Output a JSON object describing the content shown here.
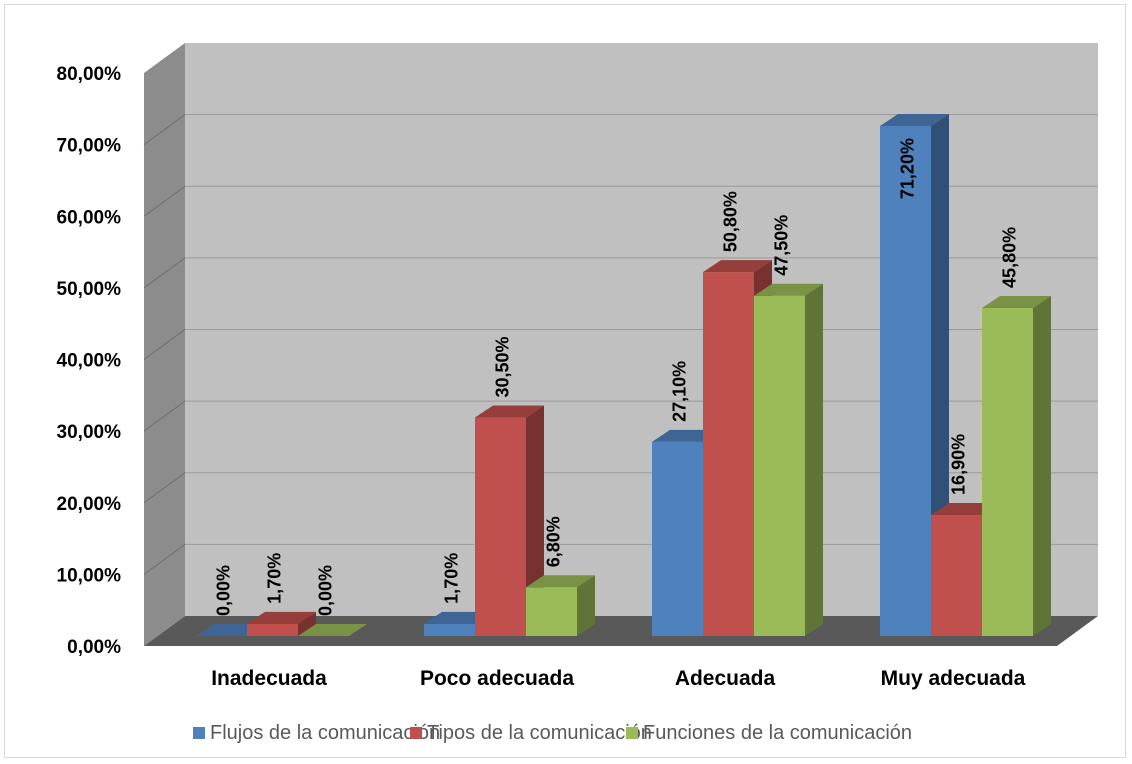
{
  "chart_data": {
    "type": "bar",
    "categories": [
      "Inadecuada",
      "Poco adecuada",
      "Adecuada",
      "Muy adecuada"
    ],
    "series": [
      {
        "name": "Flujos de la comunicación",
        "values": [
          0.0,
          1.7,
          27.1,
          71.2
        ],
        "labels": [
          "0,00%",
          "1,70%",
          "27,10%",
          "71,20%"
        ],
        "color": "#4f81bd"
      },
      {
        "name": "Tipos de la comunicación",
        "values": [
          1.7,
          30.5,
          50.8,
          16.9
        ],
        "labels": [
          "1,70%",
          "30,50%",
          "50,80%",
          "16,90%"
        ],
        "color": "#c0504d"
      },
      {
        "name": "Funciones de la comunicación",
        "values": [
          0.0,
          6.8,
          47.5,
          45.8
        ],
        "labels": [
          "0,00%",
          "6,80%",
          "47,50%",
          "45,80%"
        ],
        "color": "#9bbb59"
      }
    ],
    "yticks": [
      "0,00%",
      "10,00%",
      "20,00%",
      "30,00%",
      "40,00%",
      "50,00%",
      "60,00%",
      "70,00%",
      "80,00%"
    ],
    "ylim": [
      0,
      80
    ],
    "grid": true,
    "legend_position": "bottom",
    "style": "3d-clustered-column",
    "wall_color": "#c0c0c0",
    "floor_color": "#595959"
  }
}
